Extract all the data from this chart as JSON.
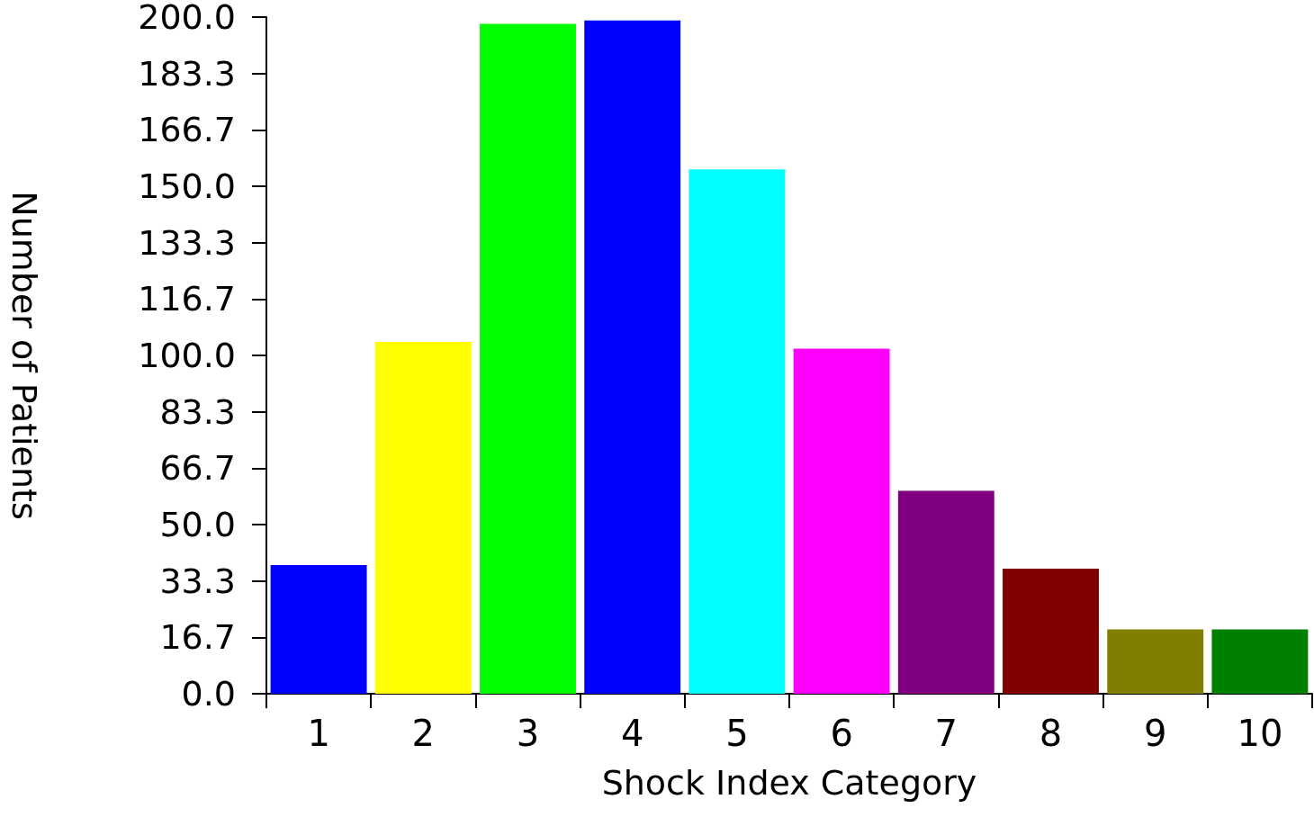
{
  "chart_data": {
    "type": "bar",
    "xlabel": "Shock Index Category",
    "ylabel": "Number of Patients",
    "categories": [
      "1",
      "2",
      "3",
      "4",
      "5",
      "6",
      "7",
      "8",
      "9",
      "10"
    ],
    "values": [
      38,
      104,
      198,
      199,
      155,
      102,
      60,
      37,
      19,
      19
    ],
    "colors": [
      "#0000ff",
      "#ffff00",
      "#00ff00",
      "#0000ff",
      "#00ffff",
      "#ff00ff",
      "#800080",
      "#800000",
      "#808000",
      "#008000"
    ],
    "ylim": [
      0,
      200
    ],
    "yticks": [
      {
        "value": 0,
        "label": "0.0"
      },
      {
        "value": 16.6667,
        "label": "16.7"
      },
      {
        "value": 33.3333,
        "label": "33.3"
      },
      {
        "value": 50,
        "label": "50.0"
      },
      {
        "value": 66.6667,
        "label": "66.7"
      },
      {
        "value": 83.3333,
        "label": "83.3"
      },
      {
        "value": 100,
        "label": "100.0"
      },
      {
        "value": 116.6667,
        "label": "116.7"
      },
      {
        "value": 133.3333,
        "label": "133.3"
      },
      {
        "value": 150,
        "label": "150.0"
      },
      {
        "value": 166.6667,
        "label": "166.7"
      },
      {
        "value": 183.3333,
        "label": "183.3"
      },
      {
        "value": 200,
        "label": "200.0"
      }
    ],
    "grid": false
  }
}
